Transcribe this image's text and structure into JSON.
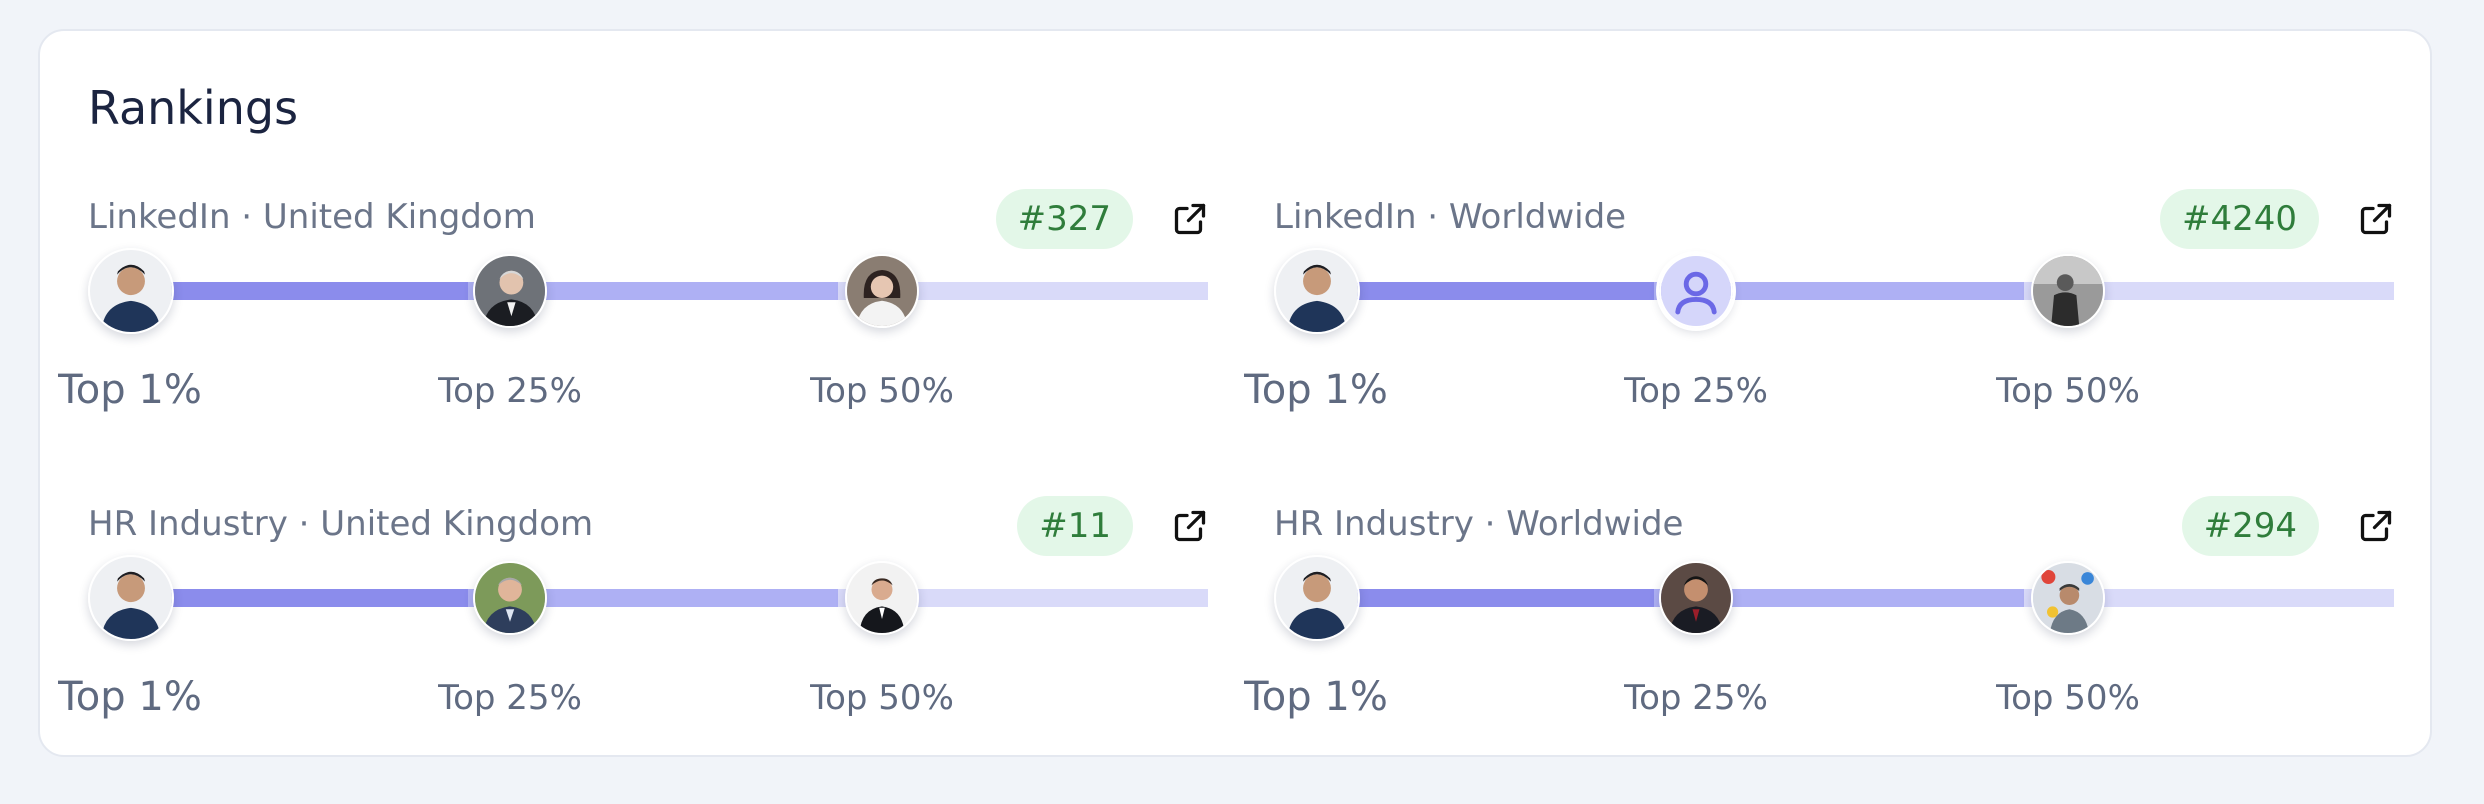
{
  "card": {
    "title": "Rankings"
  },
  "sections": [
    {
      "title": "LinkedIn · United Kingdom",
      "rank": "#327",
      "tiers": [
        "Top 1%",
        "Top 25%",
        "Top 50%"
      ],
      "avatars": [
        "user-photo",
        "person-photo",
        "person-photo"
      ]
    },
    {
      "title": "LinkedIn · Worldwide",
      "rank": "#4240",
      "tiers": [
        "Top 1%",
        "Top 25%",
        "Top 50%"
      ],
      "avatars": [
        "user-photo",
        "user-placeholder-icon",
        "person-photo"
      ]
    },
    {
      "title": "HR Industry · United Kingdom",
      "rank": "#11",
      "tiers": [
        "Top 1%",
        "Top 25%",
        "Top 50%"
      ],
      "avatars": [
        "user-photo",
        "person-photo",
        "person-photo"
      ]
    },
    {
      "title": "HR Industry · Worldwide",
      "rank": "#294",
      "tiers": [
        "Top 1%",
        "Top 25%",
        "Top 50%"
      ],
      "avatars": [
        "user-photo",
        "person-photo",
        "person-photo"
      ]
    }
  ],
  "colors": {
    "track_strong": "#8b8cec",
    "track_mid": "#aeb0f4",
    "track_light": "#d9daf9",
    "badge_bg": "#e3f7e8",
    "badge_text": "#2f7d3b"
  }
}
